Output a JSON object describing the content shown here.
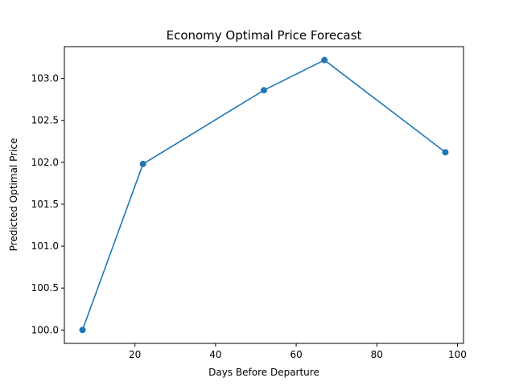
{
  "chart_data": {
    "type": "line",
    "title": "Economy Optimal Price Forecast",
    "xlabel": "Days Before Departure",
    "ylabel": "Predicted Optimal Price",
    "xlim": [
      2.5,
      101.5
    ],
    "ylim": [
      99.84,
      103.38
    ],
    "xticks": [
      20,
      40,
      60,
      80,
      100
    ],
    "yticks": [
      100.0,
      100.5,
      101.0,
      101.5,
      102.0,
      102.5,
      103.0
    ],
    "ytick_labels": [
      "100.0",
      "100.5",
      "101.0",
      "101.5",
      "102.0",
      "102.5",
      "103.0"
    ],
    "grid": false,
    "series": [
      {
        "color": "#1f77b4",
        "marker": "circle",
        "x": [
          7,
          22,
          52,
          67,
          97
        ],
        "y": [
          100.0,
          101.98,
          102.86,
          103.22,
          102.12
        ]
      }
    ]
  }
}
